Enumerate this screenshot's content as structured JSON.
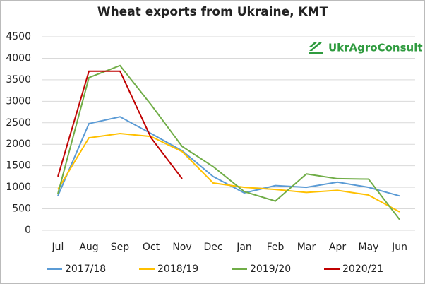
{
  "chart_data": {
    "type": "line",
    "title": "Wheat exports from Ukraine, KMT",
    "logo": "UkrAgroConsult",
    "categories": [
      "Jul",
      "Aug",
      "Sep",
      "Oct",
      "Nov",
      "Dec",
      "Jan",
      "Feb",
      "Mar",
      "Apr",
      "May",
      "Jun"
    ],
    "series": [
      {
        "name": "2017/18",
        "color": "#5b9bd5",
        "values": [
          800,
          2480,
          2640,
          2250,
          1850,
          1250,
          870,
          1040,
          1000,
          1120,
          1000,
          800
        ]
      },
      {
        "name": "2018/19",
        "color": "#ffc000",
        "values": [
          950,
          2150,
          2250,
          2180,
          1830,
          1100,
          1000,
          950,
          880,
          930,
          820,
          430
        ]
      },
      {
        "name": "2019/20",
        "color": "#70ad47",
        "values": [
          850,
          3550,
          3830,
          2920,
          1950,
          1480,
          900,
          680,
          1310,
          1200,
          1190,
          250
        ]
      },
      {
        "name": "2020/21",
        "color": "#c00000",
        "values": [
          1250,
          3700,
          3700,
          2150,
          1200,
          null,
          null,
          null,
          null,
          null,
          null,
          null
        ]
      }
    ],
    "ylim": [
      0,
      4500
    ],
    "yticks": [
      0,
      500,
      1000,
      1500,
      2000,
      2500,
      3000,
      3500,
      4000,
      4500
    ],
    "grid": true,
    "legend": "bottom"
  }
}
